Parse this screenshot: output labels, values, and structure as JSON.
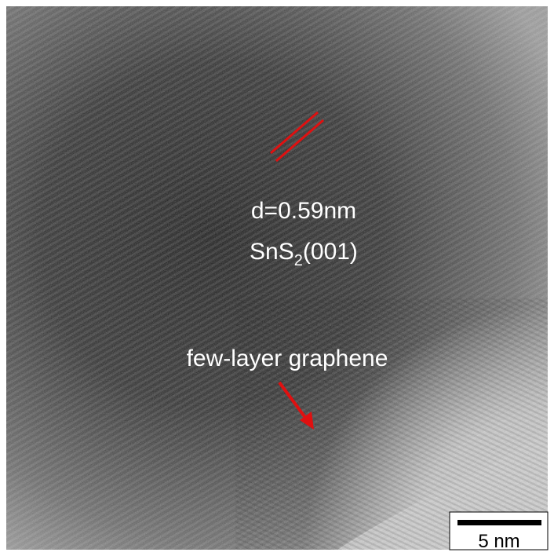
{
  "annotations": {
    "d_spacing": "d=0.59nm",
    "plane": {
      "formula": "SnS",
      "subscript": "2",
      "index": "(001)"
    },
    "label": "few-layer graphene"
  },
  "scale_bar": {
    "label": "5 nm"
  }
}
